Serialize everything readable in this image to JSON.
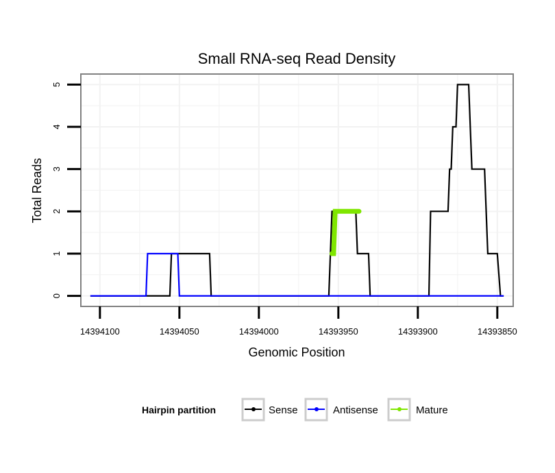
{
  "chart_data": {
    "type": "line",
    "title": "Small RNA-seq Read Density",
    "xlabel": "Genomic Position",
    "ylabel": "Total Reads",
    "xlim": [
      14394112,
      14393840
    ],
    "ylim": [
      -0.25,
      5.25
    ],
    "x_ticks": [
      14394100,
      14394050,
      14394000,
      14393950,
      14393900,
      14393850
    ],
    "y_ticks": [
      0,
      1,
      2,
      3,
      4,
      5
    ],
    "legend": {
      "title": "Hairpin partition",
      "position": "bottom",
      "entries": [
        {
          "label": "Sense",
          "color": "#000000"
        },
        {
          "label": "Antisense",
          "color": "#0000ff"
        },
        {
          "label": "Mature",
          "color": "#7fe600"
        }
      ]
    },
    "series": [
      {
        "name": "Sense",
        "color": "#000000",
        "points": [
          [
            14394106,
            0
          ],
          [
            14394056,
            0
          ],
          [
            14394055,
            1
          ],
          [
            14394031,
            1
          ],
          [
            14394030,
            0
          ],
          [
            14393956,
            0
          ],
          [
            14393954,
            2
          ],
          [
            14393939,
            2
          ],
          [
            14393938,
            1
          ],
          [
            14393931,
            1
          ],
          [
            14393930,
            0
          ],
          [
            14393893,
            0
          ],
          [
            14393892,
            2
          ],
          [
            14393881,
            2
          ],
          [
            14393880,
            3
          ],
          [
            14393879,
            3
          ],
          [
            14393878,
            4
          ],
          [
            14393876,
            4
          ],
          [
            14393875,
            5
          ],
          [
            14393868,
            5
          ],
          [
            14393866,
            3
          ],
          [
            14393858,
            3
          ],
          [
            14393856,
            1
          ],
          [
            14393850,
            1
          ],
          [
            14393848,
            0
          ],
          [
            14393846,
            0
          ]
        ]
      },
      {
        "name": "Antisense",
        "color": "#0000ff",
        "points": [
          [
            14394106,
            0
          ],
          [
            14394071,
            0
          ],
          [
            14394070,
            1
          ],
          [
            14394051,
            1
          ],
          [
            14394050,
            0
          ],
          [
            14393846,
            0
          ]
        ]
      },
      {
        "name": "Mature",
        "color": "#7fe600",
        "points": [
          [
            14393954,
            1
          ],
          [
            14393953,
            1
          ],
          [
            14393952,
            2
          ],
          [
            14393937,
            2
          ]
        ]
      }
    ]
  }
}
